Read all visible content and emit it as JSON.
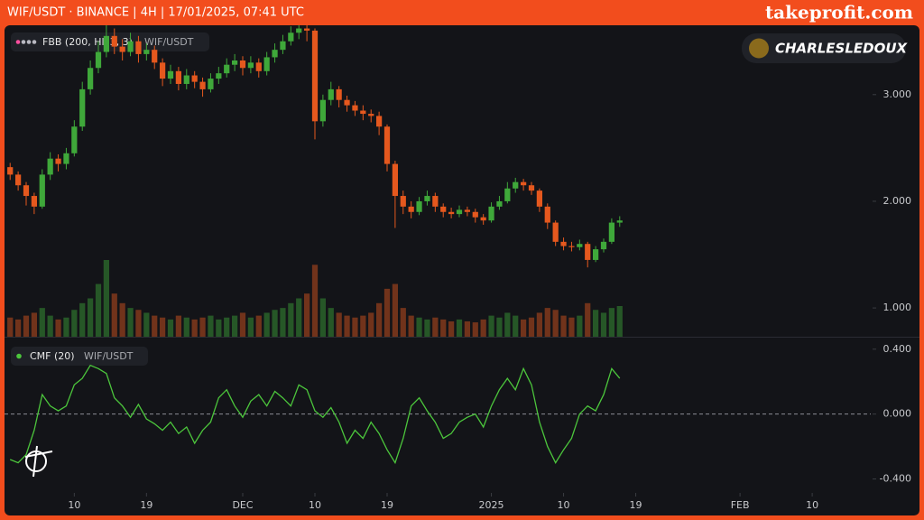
{
  "header": {
    "title": "WIF/USDT · BINANCE | 4H | 17/01/2025, 07:41 UTC",
    "brand": "takeprofit.com"
  },
  "badge": "CHARLESLEDOUX",
  "chart_data": [
    {
      "type": "candlestick",
      "legend": {
        "name": "FBB (200, Hlc3, 3)",
        "symbol": "WIF/USDT"
      },
      "up_color": "#3fa83a",
      "down_color": "#e5581e",
      "xlim": [
        1.3,
        109.3
      ],
      "ylim": [
        0.73,
        3.65
      ],
      "yticks": [
        {
          "value": 3,
          "label": "3.000"
        },
        {
          "value": 2,
          "label": "2.000"
        },
        {
          "value": 1,
          "label": "1.000"
        }
      ],
      "x": [
        2,
        3,
        4,
        5,
        6,
        7,
        8,
        9,
        10,
        11,
        12,
        13,
        14,
        15,
        16,
        17,
        18,
        19,
        20,
        21,
        22,
        23,
        24,
        25,
        26,
        27,
        28,
        29,
        30,
        31,
        32,
        33,
        34,
        35,
        36,
        37,
        38,
        39,
        40,
        41,
        42,
        43,
        44,
        45,
        46,
        47,
        48,
        49,
        50,
        51,
        52,
        53,
        54,
        55,
        56,
        57,
        58,
        59,
        60,
        61,
        62,
        63,
        64,
        65,
        66,
        67,
        68,
        69,
        70,
        71,
        72,
        73,
        74,
        75,
        76,
        77,
        78
      ],
      "open": [
        2.32,
        2.25,
        2.15,
        2.05,
        1.95,
        2.25,
        2.4,
        2.35,
        2.45,
        2.7,
        3.05,
        3.25,
        3.4,
        3.55,
        3.45,
        3.4,
        3.5,
        3.38,
        3.42,
        3.3,
        3.15,
        3.22,
        3.1,
        3.18,
        3.12,
        3.05,
        3.15,
        3.2,
        3.28,
        3.32,
        3.25,
        3.3,
        3.22,
        3.35,
        3.42,
        3.5,
        3.58,
        3.62,
        3.6,
        2.75,
        2.95,
        3.05,
        2.95,
        2.9,
        2.85,
        2.82,
        2.8,
        2.7,
        2.35,
        2.05,
        1.95,
        1.9,
        2.0,
        2.05,
        1.95,
        1.9,
        1.88,
        1.92,
        1.9,
        1.85,
        1.82,
        1.95,
        2.0,
        2.12,
        2.18,
        2.15,
        2.1,
        1.95,
        1.8,
        1.62,
        1.58,
        1.57,
        1.6,
        1.45,
        1.55,
        1.62,
        1.8
      ],
      "high": [
        2.36,
        2.28,
        2.18,
        2.08,
        2.3,
        2.46,
        2.44,
        2.5,
        2.76,
        3.12,
        3.32,
        3.5,
        3.7,
        3.62,
        3.52,
        3.58,
        3.55,
        3.48,
        3.46,
        3.34,
        3.28,
        3.26,
        3.24,
        3.22,
        3.16,
        3.2,
        3.26,
        3.34,
        3.38,
        3.36,
        3.36,
        3.34,
        3.4,
        3.48,
        3.56,
        3.64,
        3.7,
        3.68,
        3.62,
        3.0,
        3.12,
        3.08,
        2.99,
        2.94,
        2.9,
        2.86,
        2.84,
        2.72,
        2.38,
        2.1,
        2.0,
        2.04,
        2.1,
        2.08,
        1.98,
        1.94,
        1.96,
        1.95,
        1.93,
        1.88,
        1.99,
        2.05,
        2.18,
        2.22,
        2.21,
        2.18,
        2.12,
        1.98,
        1.82,
        1.66,
        1.62,
        1.64,
        1.62,
        1.58,
        1.65,
        1.84,
        1.86
      ],
      "low": [
        2.2,
        2.1,
        1.96,
        1.88,
        1.93,
        2.2,
        2.28,
        2.3,
        2.42,
        2.66,
        3.0,
        3.2,
        3.35,
        3.38,
        3.32,
        3.36,
        3.3,
        3.32,
        3.24,
        3.08,
        3.1,
        3.04,
        3.05,
        3.06,
        2.98,
        3.02,
        3.1,
        3.16,
        3.22,
        3.18,
        3.2,
        3.16,
        3.18,
        3.3,
        3.38,
        3.46,
        3.52,
        3.5,
        2.58,
        2.7,
        2.9,
        2.88,
        2.84,
        2.8,
        2.76,
        2.74,
        2.62,
        2.28,
        1.75,
        1.88,
        1.84,
        1.87,
        1.96,
        1.9,
        1.85,
        1.84,
        1.85,
        1.86,
        1.8,
        1.78,
        1.8,
        1.92,
        1.98,
        2.08,
        2.1,
        2.06,
        1.9,
        1.74,
        1.58,
        1.54,
        1.53,
        1.54,
        1.38,
        1.43,
        1.52,
        1.6,
        1.76
      ],
      "close": [
        2.25,
        2.15,
        2.05,
        1.95,
        2.25,
        2.4,
        2.35,
        2.45,
        2.7,
        3.05,
        3.25,
        3.4,
        3.55,
        3.45,
        3.4,
        3.5,
        3.38,
        3.42,
        3.3,
        3.15,
        3.22,
        3.1,
        3.18,
        3.12,
        3.05,
        3.15,
        3.2,
        3.28,
        3.32,
        3.25,
        3.3,
        3.22,
        3.35,
        3.42,
        3.5,
        3.58,
        3.62,
        3.6,
        2.75,
        2.95,
        3.05,
        2.95,
        2.9,
        2.85,
        2.82,
        2.8,
        2.7,
        2.35,
        2.05,
        1.95,
        1.9,
        2.0,
        2.05,
        1.95,
        1.9,
        1.88,
        1.92,
        1.9,
        1.85,
        1.82,
        1.95,
        2.0,
        2.12,
        2.18,
        2.15,
        2.1,
        1.95,
        1.8,
        1.62,
        1.58,
        1.57,
        1.6,
        1.45,
        1.55,
        1.62,
        1.8,
        1.82
      ],
      "volume": [
        20,
        18,
        22,
        25,
        30,
        22,
        18,
        20,
        28,
        35,
        40,
        55,
        80,
        45,
        35,
        30,
        28,
        25,
        22,
        20,
        18,
        22,
        20,
        18,
        20,
        22,
        18,
        20,
        22,
        25,
        20,
        22,
        25,
        28,
        30,
        35,
        40,
        45,
        75,
        40,
        30,
        25,
        22,
        20,
        22,
        25,
        35,
        50,
        55,
        30,
        22,
        20,
        18,
        20,
        18,
        16,
        18,
        16,
        15,
        18,
        22,
        20,
        25,
        22,
        18,
        20,
        25,
        30,
        28,
        22,
        20,
        22,
        35,
        28,
        25,
        30,
        32
      ]
    },
    {
      "type": "line",
      "legend": {
        "name": "CMF (20)",
        "symbol": "WIF/USDT"
      },
      "color": "#4cc63c",
      "xlim": [
        1.3,
        109.3
      ],
      "ylim": [
        -0.486,
        0.471
      ],
      "yticks": [
        {
          "value": 0.4,
          "label": "0.400"
        },
        {
          "value": 0,
          "label": "0.000"
        },
        {
          "value": -0.4,
          "label": "-0.400"
        }
      ],
      "reference_line": 0,
      "xticks": [
        {
          "value": 10,
          "label": "10"
        },
        {
          "value": 19,
          "label": "19"
        },
        {
          "value": 31,
          "label": "DEC"
        },
        {
          "value": 40,
          "label": "10"
        },
        {
          "value": 49,
          "label": "19"
        },
        {
          "value": 62,
          "label": "2025"
        },
        {
          "value": 71,
          "label": "10"
        },
        {
          "value": 80,
          "label": "19"
        },
        {
          "value": 93,
          "label": "FEB"
        },
        {
          "value": 102,
          "label": "10"
        }
      ],
      "x": [
        2,
        3,
        4,
        5,
        6,
        7,
        8,
        9,
        10,
        11,
        12,
        13,
        14,
        15,
        16,
        17,
        18,
        19,
        20,
        21,
        22,
        23,
        24,
        25,
        26,
        27,
        28,
        29,
        30,
        31,
        32,
        33,
        34,
        35,
        36,
        37,
        38,
        39,
        40,
        41,
        42,
        43,
        44,
        45,
        46,
        47,
        48,
        49,
        50,
        51,
        52,
        53,
        54,
        55,
        56,
        57,
        58,
        59,
        60,
        61,
        62,
        63,
        64,
        65,
        66,
        67,
        68,
        69,
        70,
        71,
        72,
        73,
        74,
        75,
        76,
        77,
        78
      ],
      "values": [
        -0.28,
        -0.3,
        -0.25,
        -0.1,
        0.12,
        0.05,
        0.02,
        0.05,
        0.18,
        0.22,
        0.3,
        0.28,
        0.25,
        0.1,
        0.05,
        -0.02,
        0.06,
        -0.03,
        -0.06,
        -0.1,
        -0.05,
        -0.12,
        -0.08,
        -0.18,
        -0.1,
        -0.05,
        0.1,
        0.15,
        0.05,
        -0.02,
        0.08,
        0.12,
        0.05,
        0.14,
        0.1,
        0.05,
        0.18,
        0.15,
        0.02,
        -0.02,
        0.04,
        -0.05,
        -0.18,
        -0.1,
        -0.15,
        -0.05,
        -0.12,
        -0.22,
        -0.3,
        -0.15,
        0.05,
        0.1,
        0.02,
        -0.05,
        -0.15,
        -0.12,
        -0.05,
        -0.02,
        0.0,
        -0.08,
        0.05,
        0.15,
        0.22,
        0.15,
        0.28,
        0.18,
        -0.05,
        -0.2,
        -0.3,
        -0.22,
        -0.15,
        0.0,
        0.05,
        0.02,
        0.12,
        0.28,
        0.22
      ]
    }
  ]
}
